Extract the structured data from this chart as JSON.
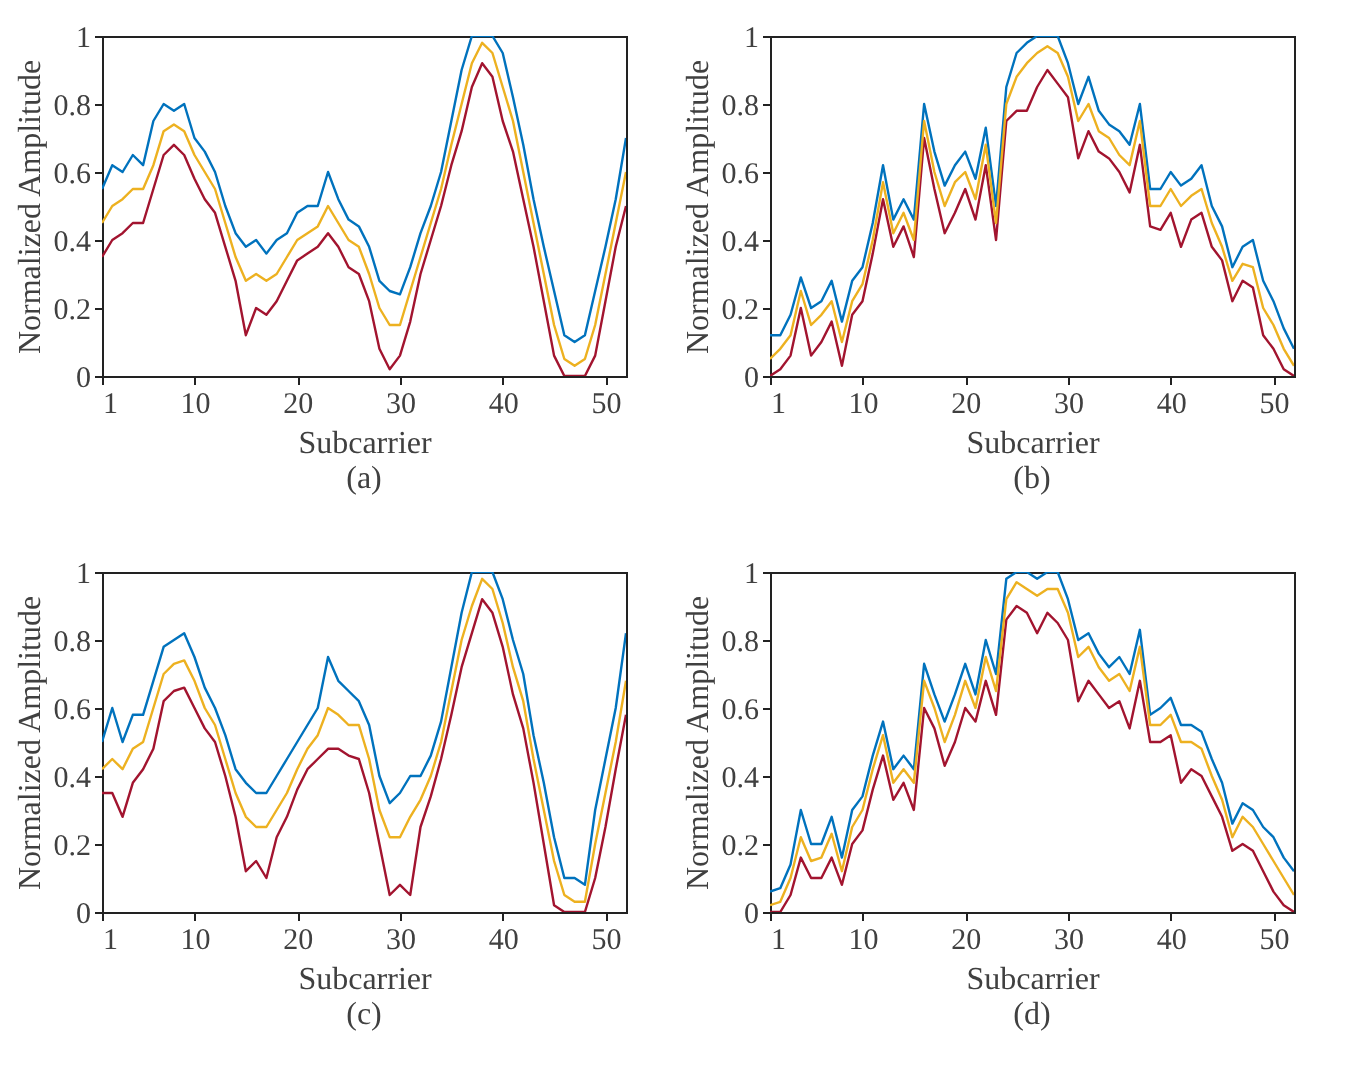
{
  "chart_data": [
    {
      "type": "line",
      "xlabel": "Subcarrier",
      "ylabel": "Normalized Amplitude",
      "annotations": [
        "(a)"
      ],
      "xlim": [
        1,
        52
      ],
      "xticks": [
        1,
        10,
        20,
        30,
        40,
        50
      ],
      "ylim": [
        0,
        1
      ],
      "yticks": [
        0,
        0.2,
        0.4,
        0.6,
        0.8,
        1
      ],
      "grid": false,
      "x": [
        1,
        2,
        3,
        4,
        5,
        6,
        7,
        8,
        9,
        10,
        11,
        12,
        13,
        14,
        15,
        16,
        17,
        18,
        19,
        20,
        21,
        22,
        23,
        24,
        25,
        26,
        27,
        28,
        29,
        30,
        31,
        32,
        33,
        34,
        35,
        36,
        37,
        38,
        39,
        40,
        41,
        42,
        43,
        44,
        45,
        46,
        47,
        48,
        49,
        50,
        51,
        52
      ],
      "series": [
        {
          "color": "#0072BD",
          "values": [
            0.55,
            0.62,
            0.6,
            0.65,
            0.62,
            0.75,
            0.8,
            0.78,
            0.8,
            0.7,
            0.66,
            0.6,
            0.5,
            0.42,
            0.38,
            0.4,
            0.36,
            0.4,
            0.42,
            0.48,
            0.5,
            0.5,
            0.6,
            0.52,
            0.46,
            0.44,
            0.38,
            0.28,
            0.25,
            0.24,
            0.32,
            0.42,
            0.5,
            0.6,
            0.75,
            0.9,
            1,
            1,
            1,
            0.95,
            0.82,
            0.68,
            0.52,
            0.38,
            0.25,
            0.12,
            0.1,
            0.12,
            0.25,
            0.38,
            0.52,
            0.7
          ]
        },
        {
          "color": "#A2142F",
          "values": [
            0.35,
            0.4,
            0.42,
            0.45,
            0.45,
            0.55,
            0.65,
            0.68,
            0.65,
            0.58,
            0.52,
            0.48,
            0.38,
            0.28,
            0.12,
            0.2,
            0.18,
            0.22,
            0.28,
            0.34,
            0.36,
            0.38,
            0.42,
            0.38,
            0.32,
            0.3,
            0.22,
            0.08,
            0.02,
            0.06,
            0.16,
            0.3,
            0.4,
            0.5,
            0.62,
            0.72,
            0.85,
            0.92,
            0.88,
            0.75,
            0.66,
            0.52,
            0.38,
            0.22,
            0.06,
            0,
            0,
            0,
            0.06,
            0.22,
            0.38,
            0.5
          ]
        },
        {
          "color": "#EDB120",
          "values": [
            0.45,
            0.5,
            0.52,
            0.55,
            0.55,
            0.62,
            0.72,
            0.74,
            0.72,
            0.65,
            0.6,
            0.55,
            0.45,
            0.35,
            0.28,
            0.3,
            0.28,
            0.3,
            0.35,
            0.4,
            0.42,
            0.44,
            0.5,
            0.45,
            0.4,
            0.38,
            0.3,
            0.2,
            0.15,
            0.15,
            0.25,
            0.35,
            0.45,
            0.55,
            0.68,
            0.8,
            0.92,
            0.98,
            0.95,
            0.85,
            0.75,
            0.6,
            0.45,
            0.3,
            0.15,
            0.05,
            0.03,
            0.05,
            0.15,
            0.3,
            0.45,
            0.6
          ]
        }
      ]
    },
    {
      "type": "line",
      "xlabel": "Subcarrier",
      "ylabel": "Normalized Amplitude",
      "annotations": [
        "(b)"
      ],
      "xlim": [
        1,
        52
      ],
      "xticks": [
        1,
        10,
        20,
        30,
        40,
        50
      ],
      "ylim": [
        0,
        1
      ],
      "yticks": [
        0,
        0.2,
        0.4,
        0.6,
        0.8,
        1
      ],
      "grid": false,
      "x": [
        1,
        2,
        3,
        4,
        5,
        6,
        7,
        8,
        9,
        10,
        11,
        12,
        13,
        14,
        15,
        16,
        17,
        18,
        19,
        20,
        21,
        22,
        23,
        24,
        25,
        26,
        27,
        28,
        29,
        30,
        31,
        32,
        33,
        34,
        35,
        36,
        37,
        38,
        39,
        40,
        41,
        42,
        43,
        44,
        45,
        46,
        47,
        48,
        49,
        50,
        51,
        52
      ],
      "series": [
        {
          "color": "#0072BD",
          "values": [
            0.12,
            0.12,
            0.18,
            0.29,
            0.2,
            0.22,
            0.28,
            0.16,
            0.28,
            0.32,
            0.45,
            0.62,
            0.46,
            0.52,
            0.46,
            0.8,
            0.66,
            0.56,
            0.62,
            0.66,
            0.58,
            0.73,
            0.5,
            0.85,
            0.95,
            0.98,
            1,
            1,
            1,
            0.92,
            0.8,
            0.88,
            0.78,
            0.74,
            0.72,
            0.68,
            0.8,
            0.55,
            0.55,
            0.6,
            0.56,
            0.58,
            0.62,
            0.5,
            0.44,
            0.32,
            0.38,
            0.4,
            0.28,
            0.22,
            0.14,
            0.08
          ]
        },
        {
          "color": "#A2142F",
          "values": [
            0,
            0.02,
            0.06,
            0.2,
            0.06,
            0.1,
            0.16,
            0.03,
            0.18,
            0.22,
            0.36,
            0.52,
            0.38,
            0.44,
            0.35,
            0.7,
            0.55,
            0.42,
            0.48,
            0.55,
            0.46,
            0.62,
            0.4,
            0.75,
            0.78,
            0.78,
            0.85,
            0.9,
            0.86,
            0.82,
            0.64,
            0.72,
            0.66,
            0.64,
            0.6,
            0.54,
            0.68,
            0.44,
            0.43,
            0.48,
            0.38,
            0.46,
            0.48,
            0.38,
            0.34,
            0.22,
            0.28,
            0.26,
            0.12,
            0.08,
            0.02,
            0
          ]
        },
        {
          "color": "#EDB120",
          "values": [
            0.05,
            0.08,
            0.12,
            0.25,
            0.15,
            0.18,
            0.22,
            0.1,
            0.22,
            0.27,
            0.4,
            0.57,
            0.42,
            0.48,
            0.4,
            0.75,
            0.6,
            0.5,
            0.57,
            0.6,
            0.52,
            0.68,
            0.45,
            0.8,
            0.88,
            0.92,
            0.95,
            0.97,
            0.95,
            0.88,
            0.75,
            0.8,
            0.72,
            0.7,
            0.65,
            0.62,
            0.75,
            0.5,
            0.5,
            0.55,
            0.5,
            0.53,
            0.55,
            0.45,
            0.38,
            0.28,
            0.33,
            0.32,
            0.2,
            0.15,
            0.08,
            0.03
          ]
        }
      ]
    },
    {
      "type": "line",
      "xlabel": "Subcarrier",
      "ylabel": "Normalized Amplitude",
      "annotations": [
        "(c)"
      ],
      "xlim": [
        1,
        52
      ],
      "xticks": [
        1,
        10,
        20,
        30,
        40,
        50
      ],
      "ylim": [
        0,
        1
      ],
      "yticks": [
        0,
        0.2,
        0.4,
        0.6,
        0.8,
        1
      ],
      "grid": false,
      "x": [
        1,
        2,
        3,
        4,
        5,
        6,
        7,
        8,
        9,
        10,
        11,
        12,
        13,
        14,
        15,
        16,
        17,
        18,
        19,
        20,
        21,
        22,
        23,
        24,
        25,
        26,
        27,
        28,
        29,
        30,
        31,
        32,
        33,
        34,
        35,
        36,
        37,
        38,
        39,
        40,
        41,
        42,
        43,
        44,
        45,
        46,
        47,
        48,
        49,
        50,
        51,
        52
      ],
      "series": [
        {
          "color": "#0072BD",
          "values": [
            0.5,
            0.6,
            0.5,
            0.58,
            0.58,
            0.68,
            0.78,
            0.8,
            0.82,
            0.75,
            0.66,
            0.6,
            0.52,
            0.42,
            0.38,
            0.35,
            0.35,
            0.4,
            0.45,
            0.5,
            0.55,
            0.6,
            0.75,
            0.68,
            0.65,
            0.62,
            0.55,
            0.4,
            0.32,
            0.35,
            0.4,
            0.4,
            0.46,
            0.56,
            0.72,
            0.88,
            1,
            1,
            1,
            0.92,
            0.8,
            0.7,
            0.52,
            0.38,
            0.22,
            0.1,
            0.1,
            0.08,
            0.3,
            0.45,
            0.6,
            0.82
          ]
        },
        {
          "color": "#A2142F",
          "values": [
            0.35,
            0.35,
            0.28,
            0.38,
            0.42,
            0.48,
            0.62,
            0.65,
            0.66,
            0.6,
            0.54,
            0.5,
            0.4,
            0.28,
            0.12,
            0.15,
            0.1,
            0.22,
            0.28,
            0.36,
            0.42,
            0.45,
            0.48,
            0.48,
            0.46,
            0.45,
            0.35,
            0.2,
            0.05,
            0.08,
            0.05,
            0.25,
            0.34,
            0.45,
            0.58,
            0.72,
            0.82,
            0.92,
            0.88,
            0.78,
            0.64,
            0.54,
            0.38,
            0.2,
            0.02,
            0,
            0,
            0,
            0.1,
            0.25,
            0.42,
            0.58
          ]
        },
        {
          "color": "#EDB120",
          "values": [
            0.42,
            0.45,
            0.42,
            0.48,
            0.5,
            0.6,
            0.7,
            0.73,
            0.74,
            0.68,
            0.6,
            0.55,
            0.45,
            0.35,
            0.28,
            0.25,
            0.25,
            0.3,
            0.35,
            0.42,
            0.48,
            0.52,
            0.6,
            0.58,
            0.55,
            0.55,
            0.45,
            0.3,
            0.22,
            0.22,
            0.28,
            0.33,
            0.4,
            0.5,
            0.65,
            0.8,
            0.9,
            0.98,
            0.95,
            0.85,
            0.72,
            0.62,
            0.45,
            0.3,
            0.15,
            0.05,
            0.03,
            0.03,
            0.2,
            0.35,
            0.5,
            0.68
          ]
        }
      ]
    },
    {
      "type": "line",
      "xlabel": "Subcarrier",
      "ylabel": "Normalized Amplitude",
      "annotations": [
        "(d)"
      ],
      "xlim": [
        1,
        52
      ],
      "xticks": [
        1,
        10,
        20,
        30,
        40,
        50
      ],
      "ylim": [
        0,
        1
      ],
      "yticks": [
        0,
        0.2,
        0.4,
        0.6,
        0.8,
        1
      ],
      "grid": false,
      "x": [
        1,
        2,
        3,
        4,
        5,
        6,
        7,
        8,
        9,
        10,
        11,
        12,
        13,
        14,
        15,
        16,
        17,
        18,
        19,
        20,
        21,
        22,
        23,
        24,
        25,
        26,
        27,
        28,
        29,
        30,
        31,
        32,
        33,
        34,
        35,
        36,
        37,
        38,
        39,
        40,
        41,
        42,
        43,
        44,
        45,
        46,
        47,
        48,
        49,
        50,
        51,
        52
      ],
      "series": [
        {
          "color": "#0072BD",
          "values": [
            0.06,
            0.07,
            0.14,
            0.3,
            0.2,
            0.2,
            0.28,
            0.16,
            0.3,
            0.34,
            0.46,
            0.56,
            0.42,
            0.46,
            0.42,
            0.73,
            0.64,
            0.56,
            0.64,
            0.73,
            0.64,
            0.8,
            0.7,
            0.98,
            1,
            1,
            0.98,
            1,
            1,
            0.92,
            0.8,
            0.82,
            0.76,
            0.72,
            0.75,
            0.7,
            0.83,
            0.58,
            0.6,
            0.63,
            0.55,
            0.55,
            0.53,
            0.45,
            0.38,
            0.26,
            0.32,
            0.3,
            0.25,
            0.22,
            0.16,
            0.12
          ]
        },
        {
          "color": "#A2142F",
          "values": [
            0,
            0,
            0.05,
            0.16,
            0.1,
            0.1,
            0.16,
            0.08,
            0.2,
            0.24,
            0.36,
            0.46,
            0.33,
            0.38,
            0.3,
            0.6,
            0.54,
            0.43,
            0.5,
            0.6,
            0.56,
            0.68,
            0.58,
            0.86,
            0.9,
            0.88,
            0.82,
            0.88,
            0.85,
            0.8,
            0.62,
            0.68,
            0.64,
            0.6,
            0.62,
            0.54,
            0.68,
            0.5,
            0.5,
            0.52,
            0.38,
            0.42,
            0.4,
            0.34,
            0.28,
            0.18,
            0.2,
            0.18,
            0.12,
            0.06,
            0.02,
            0
          ]
        },
        {
          "color": "#EDB120",
          "values": [
            0.02,
            0.03,
            0.1,
            0.22,
            0.15,
            0.16,
            0.23,
            0.12,
            0.25,
            0.3,
            0.42,
            0.52,
            0.38,
            0.42,
            0.38,
            0.68,
            0.6,
            0.5,
            0.58,
            0.68,
            0.6,
            0.75,
            0.65,
            0.92,
            0.97,
            0.95,
            0.93,
            0.95,
            0.95,
            0.88,
            0.75,
            0.78,
            0.72,
            0.68,
            0.7,
            0.65,
            0.78,
            0.55,
            0.55,
            0.58,
            0.5,
            0.5,
            0.48,
            0.4,
            0.33,
            0.22,
            0.28,
            0.25,
            0.2,
            0.15,
            0.1,
            0.05
          ]
        }
      ]
    }
  ]
}
